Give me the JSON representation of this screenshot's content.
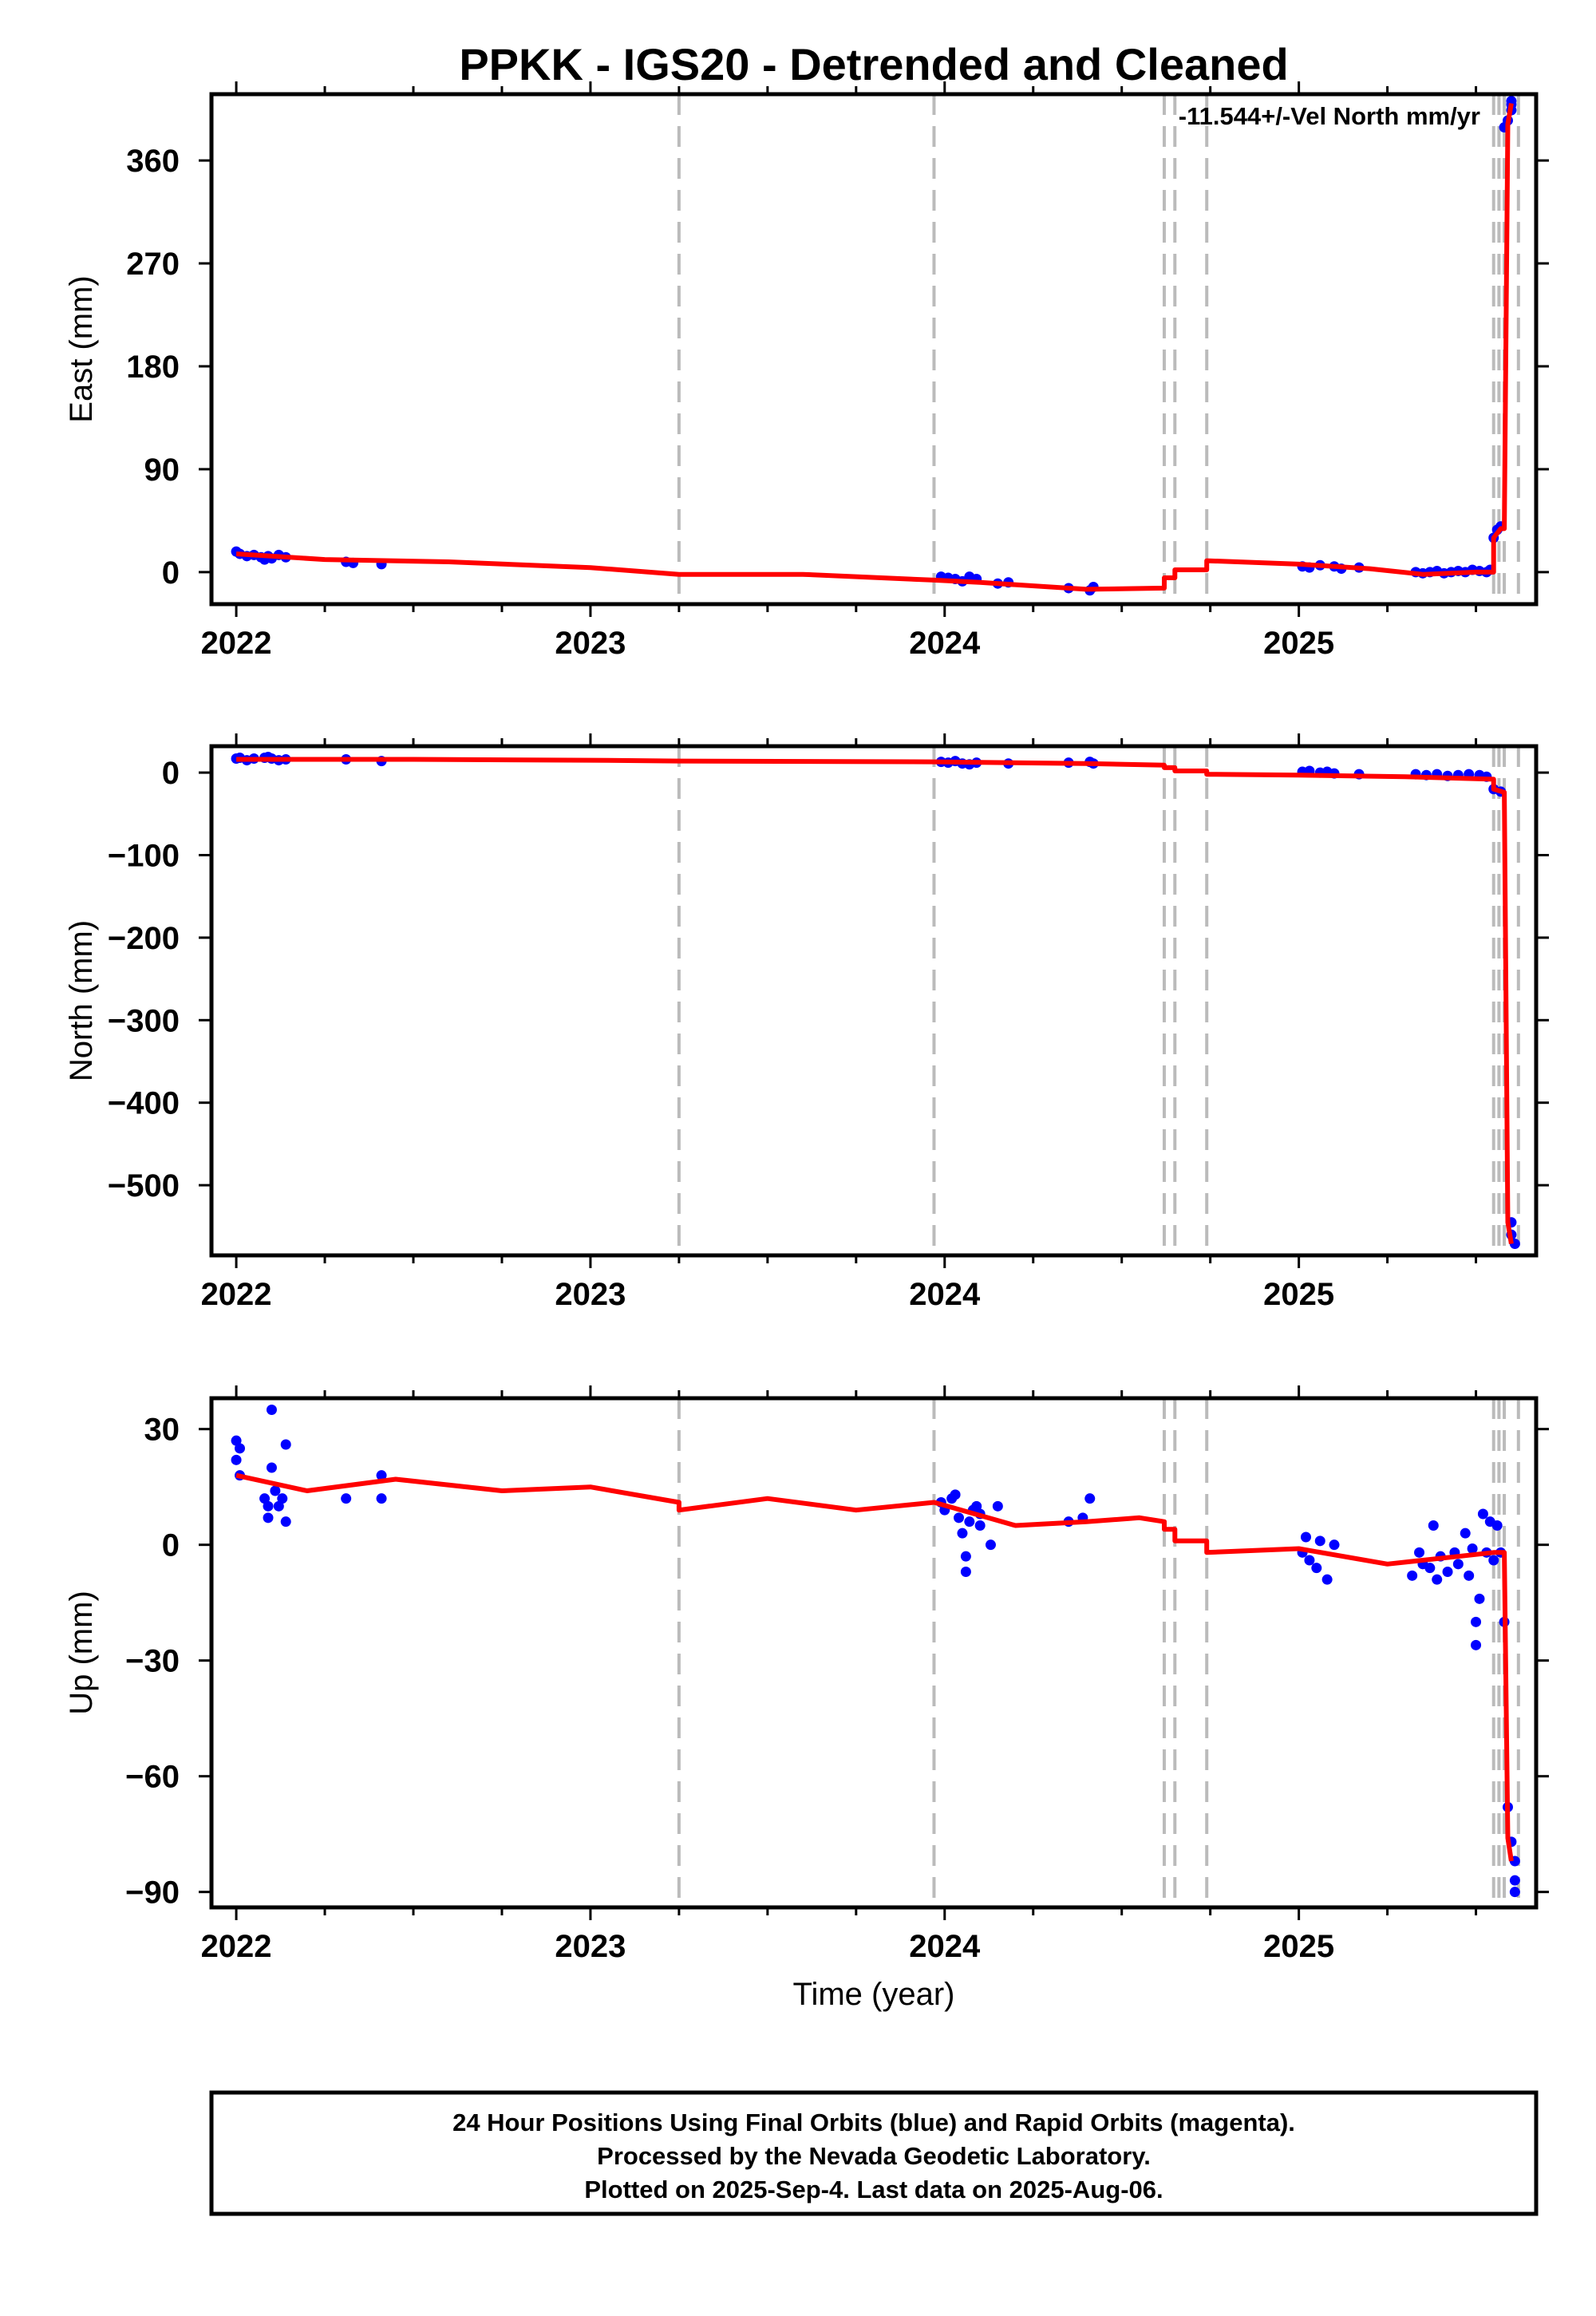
{
  "title": "PPKK - IGS20 - Detrended and Cleaned",
  "colors": {
    "observations": "#0000ff",
    "model": "#ff0000",
    "event_lines": "#bbbbbb",
    "frame": "#000000"
  },
  "footer": {
    "line1": "24 Hour Positions Using Final Orbits (blue) and Rapid Orbits (magenta).",
    "line2": "Processed by the Nevada Geodetic Laboratory.",
    "line3": "Plotted on 2025-Sep-4. Last data on 2025-Aug-06."
  },
  "chart_data": [
    {
      "type": "scatter",
      "component": "East",
      "ylabel": "East (mm)",
      "xlabel": "",
      "xlim": [
        2021.93,
        2025.67
      ],
      "ylim": [
        -28,
        418
      ],
      "x_ticks": [
        2022,
        2023,
        2024,
        2025
      ],
      "y_ticks": [
        0,
        90,
        180,
        270,
        360
      ],
      "annotation": "-11.544+/-Vel North mm/yr",
      "event_lines": [
        2023.25,
        2023.97,
        2024.62,
        2024.65,
        2024.74,
        2025.55,
        2025.565,
        2025.58,
        2025.62
      ],
      "points": [
        [
          2022.0,
          18
        ],
        [
          2022.01,
          16
        ],
        [
          2022.03,
          14
        ],
        [
          2022.05,
          15
        ],
        [
          2022.07,
          13
        ],
        [
          2022.08,
          11
        ],
        [
          2022.09,
          14
        ],
        [
          2022.1,
          12
        ],
        [
          2022.12,
          15
        ],
        [
          2022.14,
          13
        ],
        [
          2022.31,
          9
        ],
        [
          2022.33,
          8
        ],
        [
          2022.41,
          7
        ],
        [
          2023.99,
          -4
        ],
        [
          2024.01,
          -5
        ],
        [
          2024.03,
          -6
        ],
        [
          2024.05,
          -8
        ],
        [
          2024.07,
          -4
        ],
        [
          2024.09,
          -6
        ],
        [
          2024.15,
          -10
        ],
        [
          2024.18,
          -9
        ],
        [
          2024.35,
          -14
        ],
        [
          2024.41,
          -16
        ],
        [
          2024.42,
          -13
        ],
        [
          2025.01,
          5
        ],
        [
          2025.03,
          4
        ],
        [
          2025.06,
          6
        ],
        [
          2025.1,
          5
        ],
        [
          2025.12,
          3
        ],
        [
          2025.17,
          4
        ],
        [
          2025.33,
          0
        ],
        [
          2025.35,
          -1
        ],
        [
          2025.37,
          0
        ],
        [
          2025.39,
          1
        ],
        [
          2025.41,
          -1
        ],
        [
          2025.43,
          0
        ],
        [
          2025.45,
          1
        ],
        [
          2025.47,
          0
        ],
        [
          2025.49,
          2
        ],
        [
          2025.51,
          1
        ],
        [
          2025.53,
          0
        ],
        [
          2025.54,
          2
        ],
        [
          2025.55,
          30
        ],
        [
          2025.56,
          37
        ],
        [
          2025.57,
          40
        ],
        [
          2025.58,
          389
        ],
        [
          2025.59,
          395
        ],
        [
          2025.6,
          404
        ],
        [
          2025.6,
          409
        ],
        [
          2025.6,
          412
        ]
      ],
      "model": [
        [
          2022.0,
          16
        ],
        [
          2022.25,
          11
        ],
        [
          2022.6,
          9
        ],
        [
          2023.0,
          4
        ],
        [
          2023.25,
          -2
        ],
        [
          2023.6,
          -2
        ],
        [
          2023.97,
          -7
        ],
        [
          2024.1,
          -9
        ],
        [
          2024.4,
          -15
        ],
        [
          2024.62,
          -14
        ],
        [
          2024.62,
          -5
        ],
        [
          2024.65,
          -5
        ],
        [
          2024.65,
          2
        ],
        [
          2024.74,
          2
        ],
        [
          2024.74,
          10
        ],
        [
          2025.0,
          7
        ],
        [
          2025.2,
          3
        ],
        [
          2025.35,
          -2
        ],
        [
          2025.5,
          0
        ],
        [
          2025.55,
          0
        ],
        [
          2025.55,
          30
        ],
        [
          2025.57,
          38
        ],
        [
          2025.58,
          38
        ],
        [
          2025.59,
          392
        ],
        [
          2025.6,
          410
        ]
      ]
    },
    {
      "type": "scatter",
      "component": "North",
      "ylabel": "North (mm)",
      "xlabel": "",
      "xlim": [
        2021.93,
        2025.67
      ],
      "ylim": [
        -585,
        32
      ],
      "x_ticks": [
        2022,
        2023,
        2024,
        2025
      ],
      "y_ticks": [
        0,
        -100,
        -200,
        -300,
        -400,
        -500
      ],
      "event_lines": [
        2023.25,
        2023.97,
        2024.62,
        2024.65,
        2024.74,
        2025.55,
        2025.565,
        2025.58,
        2025.62
      ],
      "points": [
        [
          2022.0,
          17
        ],
        [
          2022.01,
          18
        ],
        [
          2022.03,
          15
        ],
        [
          2022.05,
          17
        ],
        [
          2022.08,
          18
        ],
        [
          2022.09,
          19
        ],
        [
          2022.1,
          17
        ],
        [
          2022.12,
          15
        ],
        [
          2022.14,
          16
        ],
        [
          2022.31,
          16
        ],
        [
          2022.41,
          14
        ],
        [
          2023.99,
          13
        ],
        [
          2024.01,
          12
        ],
        [
          2024.03,
          14
        ],
        [
          2024.05,
          11
        ],
        [
          2024.07,
          10
        ],
        [
          2024.09,
          12
        ],
        [
          2024.18,
          11
        ],
        [
          2024.35,
          12
        ],
        [
          2024.41,
          13
        ],
        [
          2024.42,
          11
        ],
        [
          2025.01,
          1
        ],
        [
          2025.03,
          2
        ],
        [
          2025.06,
          0
        ],
        [
          2025.08,
          1
        ],
        [
          2025.1,
          -1
        ],
        [
          2025.17,
          -2
        ],
        [
          2025.33,
          -2
        ],
        [
          2025.36,
          -3
        ],
        [
          2025.39,
          -2
        ],
        [
          2025.42,
          -4
        ],
        [
          2025.45,
          -3
        ],
        [
          2025.48,
          -2
        ],
        [
          2025.51,
          -3
        ],
        [
          2025.53,
          -5
        ],
        [
          2025.55,
          -20
        ],
        [
          2025.57,
          -23
        ],
        [
          2025.6,
          -545
        ],
        [
          2025.6,
          -560
        ],
        [
          2025.61,
          -571
        ]
      ],
      "model": [
        [
          2022.0,
          16
        ],
        [
          2022.5,
          16
        ],
        [
          2023.0,
          15
        ],
        [
          2023.25,
          14
        ],
        [
          2023.97,
          13
        ],
        [
          2024.4,
          11
        ],
        [
          2024.62,
          9
        ],
        [
          2024.62,
          6
        ],
        [
          2024.65,
          6
        ],
        [
          2024.65,
          2
        ],
        [
          2024.74,
          2
        ],
        [
          2024.74,
          -2
        ],
        [
          2025.0,
          -3
        ],
        [
          2025.3,
          -5
        ],
        [
          2025.55,
          -8
        ],
        [
          2025.55,
          -20
        ],
        [
          2025.58,
          -24
        ],
        [
          2025.59,
          -545
        ],
        [
          2025.6,
          -571
        ]
      ]
    },
    {
      "type": "scatter",
      "component": "Up",
      "ylabel": "Up (mm)",
      "xlabel": "Time (year)",
      "xlim": [
        2021.93,
        2025.67
      ],
      "ylim": [
        -94,
        38
      ],
      "x_ticks": [
        2022,
        2023,
        2024,
        2025
      ],
      "y_ticks": [
        30,
        0,
        -30,
        -60,
        -90
      ],
      "event_lines": [
        2023.25,
        2023.97,
        2024.62,
        2024.65,
        2024.74,
        2025.55,
        2025.565,
        2025.58,
        2025.62
      ],
      "points": [
        [
          2022.0,
          27
        ],
        [
          2022.01,
          25
        ],
        [
          2022.0,
          22
        ],
        [
          2022.01,
          18
        ],
        [
          2022.08,
          12
        ],
        [
          2022.09,
          7
        ],
        [
          2022.09,
          10
        ],
        [
          2022.1,
          20
        ],
        [
          2022.1,
          35
        ],
        [
          2022.11,
          14
        ],
        [
          2022.12,
          10
        ],
        [
          2022.13,
          12
        ],
        [
          2022.14,
          6
        ],
        [
          2022.14,
          26
        ],
        [
          2022.31,
          12
        ],
        [
          2022.41,
          18
        ],
        [
          2022.41,
          12
        ],
        [
          2023.99,
          11
        ],
        [
          2024.0,
          9
        ],
        [
          2024.02,
          12
        ],
        [
          2024.03,
          13
        ],
        [
          2024.04,
          7
        ],
        [
          2024.05,
          3
        ],
        [
          2024.06,
          -3
        ],
        [
          2024.06,
          -7
        ],
        [
          2024.07,
          6
        ],
        [
          2024.08,
          9
        ],
        [
          2024.09,
          10
        ],
        [
          2024.1,
          5
        ],
        [
          2024.1,
          8
        ],
        [
          2024.13,
          0
        ],
        [
          2024.15,
          10
        ],
        [
          2024.35,
          6
        ],
        [
          2024.39,
          7
        ],
        [
          2024.41,
          12
        ],
        [
          2025.01,
          -2
        ],
        [
          2025.02,
          2
        ],
        [
          2025.03,
          -4
        ],
        [
          2025.05,
          -6
        ],
        [
          2025.06,
          1
        ],
        [
          2025.08,
          -9
        ],
        [
          2025.1,
          0
        ],
        [
          2025.32,
          -8
        ],
        [
          2025.34,
          -2
        ],
        [
          2025.35,
          -5
        ],
        [
          2025.37,
          -6
        ],
        [
          2025.38,
          5
        ],
        [
          2025.39,
          -9
        ],
        [
          2025.4,
          -3
        ],
        [
          2025.42,
          -7
        ],
        [
          2025.44,
          -2
        ],
        [
          2025.45,
          -5
        ],
        [
          2025.47,
          3
        ],
        [
          2025.48,
          -8
        ],
        [
          2025.49,
          -1
        ],
        [
          2025.5,
          -20
        ],
        [
          2025.5,
          -26
        ],
        [
          2025.51,
          -14
        ],
        [
          2025.52,
          8
        ],
        [
          2025.53,
          -2
        ],
        [
          2025.54,
          6
        ],
        [
          2025.55,
          -4
        ],
        [
          2025.56,
          5
        ],
        [
          2025.57,
          -2
        ],
        [
          2025.58,
          -20
        ],
        [
          2025.59,
          -68
        ],
        [
          2025.6,
          -77
        ],
        [
          2025.61,
          -82
        ],
        [
          2025.61,
          -87
        ],
        [
          2025.61,
          -90
        ]
      ],
      "model": [
        [
          2022.0,
          18
        ],
        [
          2022.2,
          14
        ],
        [
          2022.45,
          17
        ],
        [
          2022.75,
          14
        ],
        [
          2023.0,
          15
        ],
        [
          2023.25,
          11
        ],
        [
          2023.25,
          9
        ],
        [
          2023.5,
          12
        ],
        [
          2023.75,
          9
        ],
        [
          2023.97,
          11
        ],
        [
          2024.2,
          5
        ],
        [
          2024.4,
          6
        ],
        [
          2024.55,
          7
        ],
        [
          2024.62,
          6
        ],
        [
          2024.62,
          4
        ],
        [
          2024.65,
          4
        ],
        [
          2024.65,
          1
        ],
        [
          2024.74,
          1
        ],
        [
          2024.74,
          -2
        ],
        [
          2025.0,
          -1
        ],
        [
          2025.25,
          -5
        ],
        [
          2025.45,
          -3
        ],
        [
          2025.55,
          -2
        ],
        [
          2025.58,
          -2
        ],
        [
          2025.59,
          -76
        ],
        [
          2025.6,
          -82
        ]
      ]
    }
  ]
}
